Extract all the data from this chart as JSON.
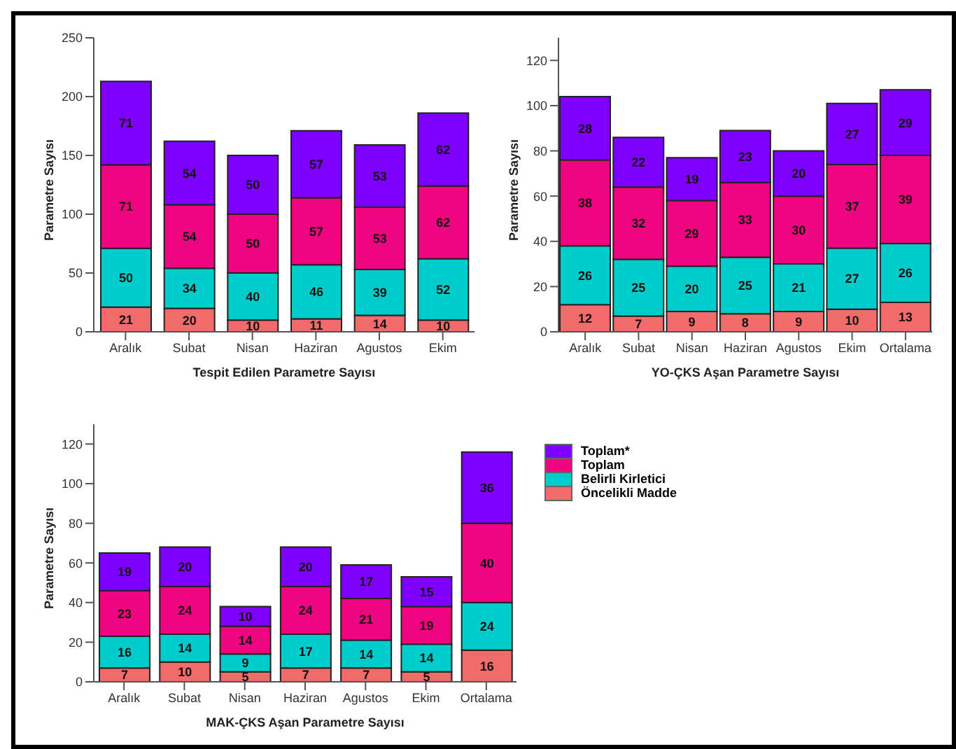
{
  "chart_data": [
    {
      "type": "bar",
      "stacked": true,
      "data_labels": true,
      "legend": false,
      "grid": false,
      "xlabel": "Tespit Edilen Parametre Sayısı",
      "ylabel": "Parametre Sayısı",
      "ylim": [
        0,
        250
      ],
      "yticks": [
        0,
        50,
        100,
        150,
        200,
        250
      ],
      "categories": [
        "Aralık",
        "Subat",
        "Nisan",
        "Haziran",
        "Agustos",
        "Ekim"
      ],
      "series": [
        {
          "color": "#f26b6b",
          "values": [
            21,
            20,
            10,
            11,
            14,
            10
          ]
        },
        {
          "color": "#00cccc",
          "values": [
            50,
            34,
            40,
            46,
            39,
            52
          ]
        },
        {
          "color": "#f0047f",
          "values": [
            71,
            54,
            50,
            57,
            53,
            62
          ]
        },
        {
          "color": "#8000ff",
          "values": [
            71,
            54,
            50,
            57,
            53,
            62
          ]
        }
      ]
    },
    {
      "type": "bar",
      "stacked": true,
      "data_labels": true,
      "legend": false,
      "grid": false,
      "xlabel": "YO-ÇKS Aşan Parametre Sayısı",
      "ylabel": "Parametre Sayısı",
      "ylim": [
        0,
        130
      ],
      "yticks": [
        0,
        20,
        40,
        60,
        80,
        100,
        120
      ],
      "categories": [
        "Aralık",
        "Subat",
        "Nisan",
        "Haziran",
        "Agustos",
        "Ekim",
        "Ortalama"
      ],
      "series": [
        {
          "color": "#f26b6b",
          "values": [
            12,
            7,
            9,
            8,
            9,
            10,
            13
          ]
        },
        {
          "color": "#00cccc",
          "values": [
            26,
            25,
            20,
            25,
            21,
            27,
            26
          ]
        },
        {
          "color": "#f0047f",
          "values": [
            38,
            32,
            29,
            33,
            30,
            37,
            39
          ]
        },
        {
          "color": "#8000ff",
          "values": [
            28,
            22,
            19,
            23,
            20,
            27,
            29
          ]
        }
      ]
    },
    {
      "type": "bar",
      "stacked": true,
      "data_labels": true,
      "legend": "right",
      "grid": false,
      "xlabel": "MAK-ÇKS Aşan Parametre Sayısı",
      "ylabel": "Parametre Sayısı",
      "ylim": [
        0,
        130
      ],
      "yticks": [
        0,
        20,
        40,
        60,
        80,
        100,
        120
      ],
      "categories": [
        "Aralık",
        "Subat",
        "Nisan",
        "Haziran",
        "Agustos",
        "Ekim",
        "Ortalama"
      ],
      "series": [
        {
          "name": "Öncelikli Madde",
          "color": "#f26b6b",
          "values": [
            7,
            10,
            5,
            7,
            7,
            5,
            16
          ]
        },
        {
          "name": "Belirli Kirletici",
          "color": "#00cccc",
          "values": [
            16,
            14,
            9,
            17,
            14,
            14,
            24
          ]
        },
        {
          "name": "Toplam",
          "color": "#f0047f",
          "values": [
            23,
            24,
            14,
            24,
            21,
            19,
            40
          ]
        },
        {
          "name": "Toplam*",
          "color": "#8000ff",
          "values": [
            19,
            20,
            10,
            20,
            17,
            15,
            36
          ]
        }
      ]
    }
  ]
}
